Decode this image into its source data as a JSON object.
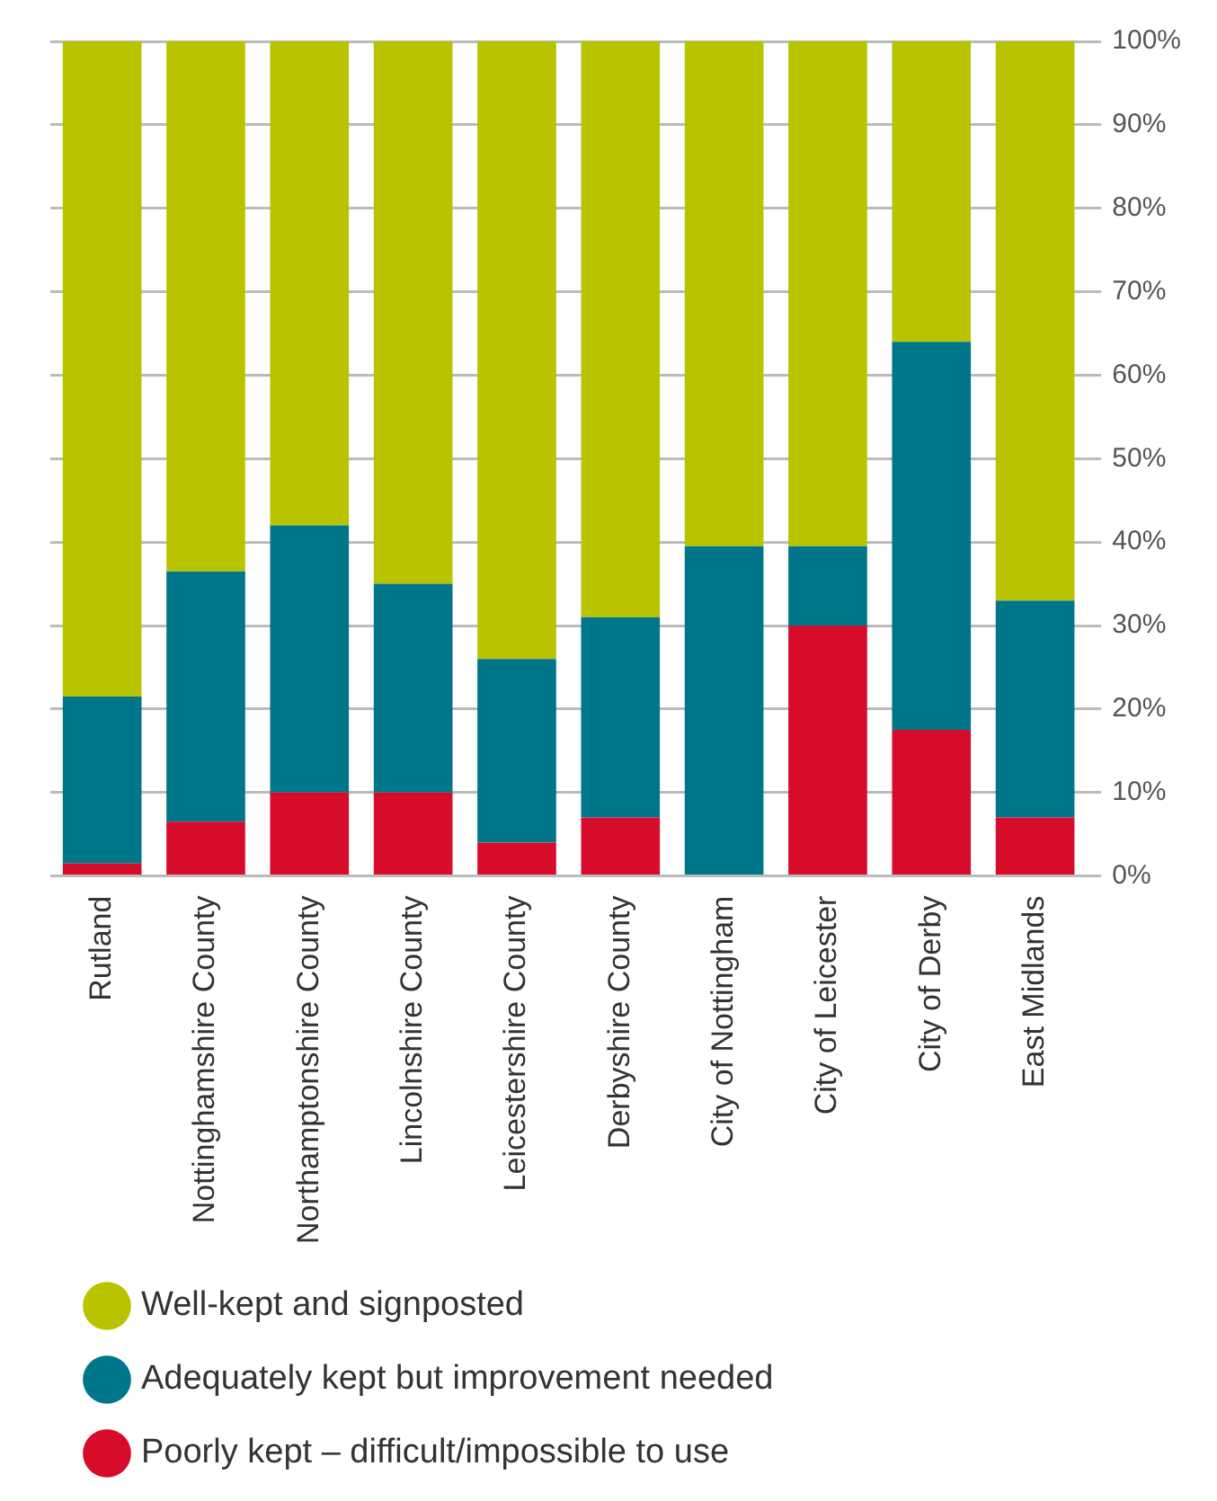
{
  "chart_data": {
    "type": "bar",
    "stacked": true,
    "categories": [
      "Rutland",
      "Nottinghamshire County",
      "Northamptonshire County",
      "Lincolnshire County",
      "Leicestershire County",
      "Derbyshire County",
      "City of Nottingham",
      "City of Leicester",
      "City of Derby",
      "East Midlands"
    ],
    "series": [
      {
        "name": "Poorly kept – difficult/impossible to use",
        "color": "#d70b2a",
        "values": [
          1.5,
          6.5,
          10,
          10,
          4,
          7,
          0,
          30,
          17.5,
          7
        ]
      },
      {
        "name": "Adequately kept but improvement needed",
        "color": "#00768a",
        "values": [
          20,
          30,
          32,
          25,
          22,
          24,
          39.5,
          9.5,
          46.5,
          26
        ]
      },
      {
        "name": "Well-kept and signposted",
        "color": "#b8c400",
        "values": [
          78.5,
          63.5,
          58,
          65,
          74,
          69,
          60.5,
          60.5,
          36,
          67
        ]
      }
    ],
    "ylim": [
      0,
      100
    ],
    "yticks": [
      {
        "value": 0,
        "label": "0%"
      },
      {
        "value": 10,
        "label": "10%"
      },
      {
        "value": 20,
        "label": "20%"
      },
      {
        "value": 30,
        "label": "30%"
      },
      {
        "value": 40,
        "label": "40%"
      },
      {
        "value": 50,
        "label": "50%"
      },
      {
        "value": 60,
        "label": "60%"
      },
      {
        "value": 70,
        "label": "70%"
      },
      {
        "value": 80,
        "label": "80%"
      },
      {
        "value": 90,
        "label": "90%"
      },
      {
        "value": 100,
        "label": "100%"
      }
    ],
    "grid": "y",
    "legend": "bottom"
  }
}
